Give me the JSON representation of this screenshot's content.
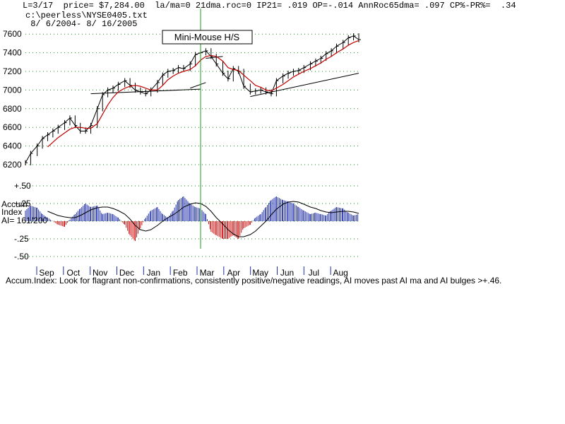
{
  "header": {
    "line1": "L=3/17  price= $7,284.00  la/ma=0 21dma.roc=0 IP21= .019 OP=-.014 AnnRoc65dma= .097 CP%-PR%=  .34",
    "file": "c:\\peerless\\NYSE0405.txt",
    "range": " 8/ 6/2004- 8/ 16/2005"
  },
  "annotation": "Mini-Mouse H/S",
  "caption": "Accum.Index: Look for flagrant non-confirmations, consistently positive/negative readings, AI moves past AI ma and AI bulges >+.46.",
  "accum_label": {
    "line1": "Accum",
    "line2": "Index",
    "line3": "AI= 161/200"
  },
  "colors": {
    "price": "#000000",
    "ma": "#c00000",
    "positive": "#1f2ea8",
    "negative": "#cc1111",
    "grid": "#1a8a1a",
    "marker": "#1aa01a"
  },
  "chart_data": [
    {
      "type": "line",
      "series_kind": "price-bars-with-moving-average",
      "ylim": [
        6200,
        7700
      ],
      "yticks": [
        "7600",
        "7400",
        "7200",
        "7000",
        "6800",
        "6600",
        "6400",
        "6200"
      ],
      "months": [
        "Sep",
        "Oct",
        "Nov",
        "Dec",
        "Jan",
        "Feb",
        "Mar",
        "Apr",
        "May",
        "Jun",
        "Jul",
        "Aug"
      ],
      "x": [
        0,
        4,
        9,
        13,
        17,
        21,
        25,
        30,
        34,
        38,
        42,
        46,
        50,
        55,
        59,
        63,
        67,
        71,
        76,
        80,
        84,
        88,
        92,
        96,
        101,
        105,
        109,
        113,
        117,
        121,
        126,
        130,
        134,
        138,
        142,
        146,
        151,
        155,
        159,
        163,
        167,
        172,
        176,
        180,
        184,
        188,
        192,
        197,
        201,
        205,
        209,
        213,
        218,
        222,
        226,
        230,
        234,
        238,
        243,
        247,
        251,
        255
      ],
      "close": [
        6220,
        6320,
        6400,
        6480,
        6520,
        6560,
        6600,
        6650,
        6700,
        6620,
        6560,
        6560,
        6620,
        6800,
        6950,
        7000,
        7020,
        7060,
        7100,
        7050,
        7000,
        6980,
        6960,
        7000,
        7080,
        7160,
        7200,
        7210,
        7240,
        7230,
        7280,
        7380,
        7400,
        7420,
        7360,
        7280,
        7180,
        7120,
        7230,
        7200,
        7040,
        6980,
        6990,
        7000,
        6980,
        6960,
        7100,
        7150,
        7180,
        7200,
        7210,
        7240,
        7280,
        7310,
        7340,
        7390,
        7420,
        7470,
        7510,
        7560,
        7580,
        7540
      ],
      "ma": [
        null,
        null,
        null,
        null,
        6390,
        6440,
        6490,
        6540,
        6580,
        6600,
        6600,
        6590,
        6590,
        6640,
        6740,
        6840,
        6920,
        6980,
        7020,
        7040,
        7050,
        7040,
        7020,
        7000,
        7000,
        7050,
        7110,
        7150,
        7180,
        7200,
        7220,
        7260,
        7320,
        7360,
        7370,
        7360,
        7310,
        7240,
        7220,
        7210,
        7160,
        7100,
        7050,
        7030,
        7000,
        6990,
        7020,
        7060,
        7100,
        7140,
        7170,
        7200,
        7230,
        7260,
        7290,
        7330,
        7360,
        7400,
        7440,
        7480,
        7510,
        7530
      ],
      "trendlines": [
        {
          "from": [
            50,
            6960
          ],
          "to": [
            134,
            7010
          ]
        },
        {
          "from": [
            126,
            7020
          ],
          "to": [
            138,
            7080
          ]
        },
        {
          "from": [
            138,
            7340
          ],
          "to": [
            151,
            7360
          ]
        },
        {
          "from": [
            172,
            6930
          ],
          "to": [
            255,
            7180
          ]
        }
      ],
      "marker_x": 134
    },
    {
      "type": "bar",
      "series_kind": "accumulation-index",
      "ylim": [
        -0.55,
        0.55
      ],
      "yticks": [
        "+.50",
        "+.25",
        "-.25",
        "-.50"
      ],
      "values": [
        0.15,
        0.22,
        0.19,
        0.1,
        0.05,
        0.0,
        -0.05,
        -0.08,
        0.02,
        0.1,
        0.18,
        0.25,
        0.2,
        0.22,
        0.1,
        0.12,
        0.1,
        0.05,
        -0.05,
        -0.2,
        -0.28,
        -0.1,
        0.05,
        0.15,
        0.2,
        0.1,
        0.05,
        0.15,
        0.3,
        0.35,
        0.25,
        0.2,
        0.18,
        0.1,
        -0.15,
        -0.2,
        -0.25,
        -0.25,
        -0.2,
        -0.25,
        -0.1,
        -0.05,
        0.05,
        0.1,
        0.2,
        0.3,
        0.35,
        0.3,
        0.28,
        0.25,
        0.2,
        0.15,
        0.1,
        0.12,
        0.1,
        0.08,
        0.15,
        0.2,
        0.18,
        0.12,
        0.08,
        0.1
      ],
      "ma": [
        null,
        null,
        null,
        null,
        0.14,
        0.11,
        0.08,
        0.06,
        0.05,
        0.05,
        0.08,
        0.12,
        0.16,
        0.19,
        0.2,
        0.2,
        0.18,
        0.15,
        0.1,
        0.03,
        -0.06,
        -0.12,
        -0.14,
        -0.12,
        -0.06,
        0.0,
        0.05,
        0.09,
        0.14,
        0.2,
        0.24,
        0.26,
        0.25,
        0.21,
        0.14,
        0.05,
        -0.04,
        -0.12,
        -0.18,
        -0.22,
        -0.22,
        -0.19,
        -0.14,
        -0.07,
        0.0,
        0.09,
        0.17,
        0.24,
        0.27,
        0.28,
        0.27,
        0.24,
        0.2,
        0.18,
        0.15,
        0.13,
        0.12,
        0.13,
        0.14,
        0.14,
        0.13,
        0.11
      ]
    }
  ]
}
